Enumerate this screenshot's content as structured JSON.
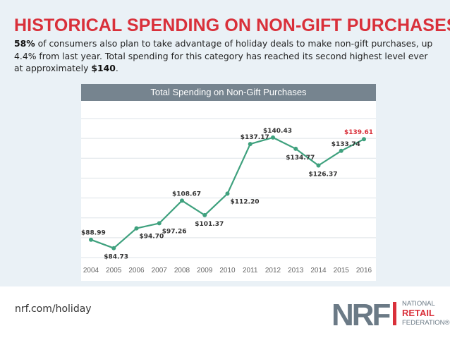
{
  "headline": "HISTORICAL SPENDING ON NON-GIFT PURCHASES",
  "intro": {
    "pct": "58%",
    "part1": " of consumers also plan to take advantage of holiday deals to make non-gift purchases, up 4.4% from last year. Total spending for this category has reached its second highest level ever at approximately ",
    "amount": "$140",
    "part2": "."
  },
  "chart_data": {
    "type": "line",
    "title": "Total Spending on Non-Gift Purchases",
    "xlabel": "",
    "ylabel": "",
    "categories": [
      "2004",
      "2005",
      "2006",
      "2007",
      "2008",
      "2009",
      "2010",
      "2011",
      "2012",
      "2013",
      "2014",
      "2015",
      "2016"
    ],
    "values": [
      88.99,
      84.73,
      94.7,
      97.26,
      108.67,
      101.37,
      112.2,
      137.17,
      140.43,
      134.77,
      126.37,
      133.74,
      139.61
    ],
    "labels": [
      "$88.99",
      "$84.73",
      "$94.70",
      "$97.26",
      "$108.67",
      "$101.37",
      "$112.20",
      "$137.17",
      "$140.43",
      "$134.77",
      "$126.37",
      "$133.74",
      "$139.61"
    ],
    "label_position": [
      "above",
      "below",
      "right",
      "right",
      "above",
      "below",
      "right",
      "above",
      "above",
      "below",
      "below",
      "above",
      "above"
    ],
    "highlight_index": 12,
    "ylim": [
      80,
      150
    ],
    "grid": true,
    "line_color": "#3fa17e",
    "highlight_color": "#d9303a"
  },
  "footer": {
    "url": "nrf.com/holiday",
    "logo": {
      "mark": "NRF",
      "line1": "NATIONAL",
      "line2": "RETAIL",
      "line3": "FEDERATION",
      "reg": "®"
    }
  },
  "colors": {
    "accent": "#d9303a",
    "background": "#eaf1f6",
    "header_bar": "#76848f"
  }
}
